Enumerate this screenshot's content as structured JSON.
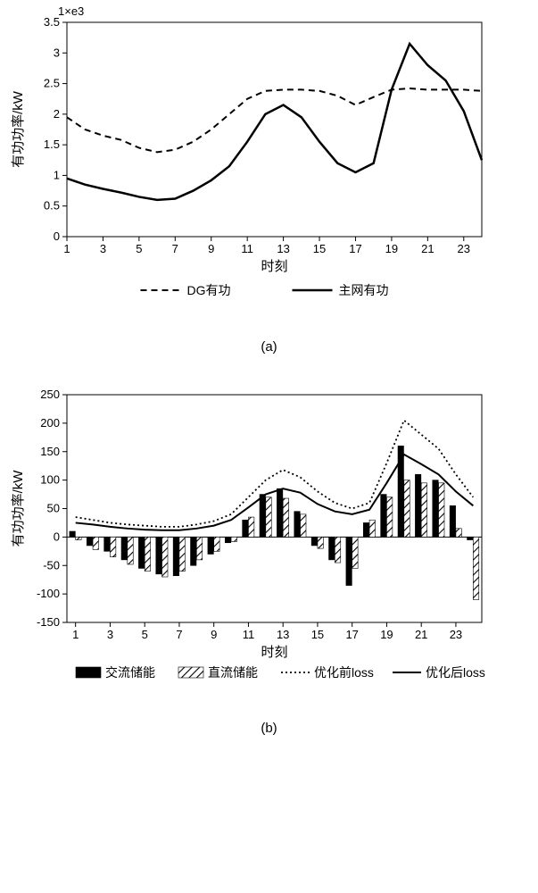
{
  "chart_a": {
    "type": "line",
    "scale_label": "1×e3",
    "ylabel": "有功功率/kW",
    "xlabel": "时刻",
    "ylim": [
      0,
      3.5
    ],
    "ytick_step": 0.5,
    "yticks": [
      "0",
      "0.5",
      "1",
      "1.5",
      "2",
      "2.5",
      "3",
      "3.5"
    ],
    "xticks": [
      "1",
      "3",
      "5",
      "7",
      "9",
      "11",
      "13",
      "15",
      "17",
      "19",
      "21",
      "23"
    ],
    "x_values": [
      1,
      2,
      3,
      4,
      5,
      6,
      7,
      8,
      9,
      10,
      11,
      12,
      13,
      14,
      15,
      16,
      17,
      18,
      19,
      20,
      21,
      22,
      23,
      24
    ],
    "series": [
      {
        "name": "DG有功",
        "label": "DG有功",
        "style": "dashed",
        "color": "#000000",
        "linewidth": 2,
        "values": [
          1.95,
          1.75,
          1.65,
          1.58,
          1.45,
          1.38,
          1.42,
          1.55,
          1.75,
          2.0,
          2.25,
          2.38,
          2.4,
          2.4,
          2.38,
          2.3,
          2.15,
          2.28,
          2.4,
          2.42,
          2.4,
          2.4,
          2.4,
          2.38
        ]
      },
      {
        "name": "主网有功",
        "label": "主网有功",
        "style": "solid",
        "color": "#000000",
        "linewidth": 2.5,
        "values": [
          0.95,
          0.85,
          0.78,
          0.72,
          0.65,
          0.6,
          0.62,
          0.75,
          0.92,
          1.15,
          1.55,
          2.0,
          2.15,
          1.95,
          1.55,
          1.2,
          1.05,
          1.2,
          2.4,
          3.15,
          2.8,
          2.55,
          2.05,
          1.25
        ]
      }
    ],
    "legend": {
      "items": [
        "DG有功",
        "主网有功"
      ]
    },
    "colors": {
      "axis": "#000000",
      "grid": "none",
      "background": "#ffffff"
    }
  },
  "chart_b": {
    "type": "bar+line",
    "ylabel": "有功功率/kW",
    "xlabel": "时刻",
    "ylim": [
      -150,
      250
    ],
    "ytick_step": 50,
    "yticks": [
      "-150",
      "-100",
      "-50",
      "0",
      "50",
      "100",
      "150",
      "200",
      "250"
    ],
    "xticks": [
      "1",
      "3",
      "5",
      "7",
      "9",
      "11",
      "13",
      "15",
      "17",
      "19",
      "21",
      "23"
    ],
    "x_values": [
      1,
      2,
      3,
      4,
      5,
      6,
      7,
      8,
      9,
      10,
      11,
      12,
      13,
      14,
      15,
      16,
      17,
      18,
      19,
      20,
      21,
      22,
      23,
      24
    ],
    "bar_series": [
      {
        "name": "交流储能",
        "label": "交流储能",
        "fill": "solid",
        "color": "#000000",
        "values": [
          10,
          -15,
          -25,
          -40,
          -55,
          -65,
          -68,
          -50,
          -30,
          -10,
          30,
          75,
          85,
          45,
          -15,
          -40,
          -85,
          25,
          75,
          160,
          110,
          100,
          55,
          -5
        ]
      },
      {
        "name": "直流储能",
        "label": "直流储能",
        "fill": "hatched",
        "color": "#000000",
        "values": [
          -5,
          -22,
          -35,
          -48,
          -60,
          -70,
          -60,
          -40,
          -25,
          -8,
          35,
          70,
          68,
          40,
          -20,
          -45,
          -55,
          30,
          70,
          100,
          95,
          95,
          15,
          -110
        ]
      }
    ],
    "line_series": [
      {
        "name": "优化前loss",
        "label": "优化前loss",
        "style": "dotted",
        "color": "#000000",
        "linewidth": 1.8,
        "values": [
          35,
          30,
          25,
          22,
          20,
          18,
          18,
          22,
          28,
          40,
          70,
          100,
          118,
          105,
          80,
          60,
          50,
          60,
          130,
          205,
          180,
          155,
          110,
          70
        ]
      },
      {
        "name": "优化后loss",
        "label": "优化后loss",
        "style": "solid",
        "color": "#000000",
        "linewidth": 2,
        "values": [
          25,
          22,
          18,
          15,
          13,
          12,
          12,
          15,
          20,
          30,
          52,
          75,
          85,
          78,
          58,
          45,
          40,
          48,
          95,
          145,
          128,
          110,
          80,
          55
        ]
      }
    ],
    "legend": {
      "items": [
        "交流储能",
        "直流储能",
        "优化前loss",
        "优化后loss"
      ]
    },
    "colors": {
      "axis": "#000000",
      "background": "#ffffff",
      "hatch_bg": "#ffffff",
      "hatch_fg": "#000000"
    },
    "bar_group_width": 0.7
  },
  "captions": {
    "a": "(a)",
    "b": "(b)"
  }
}
